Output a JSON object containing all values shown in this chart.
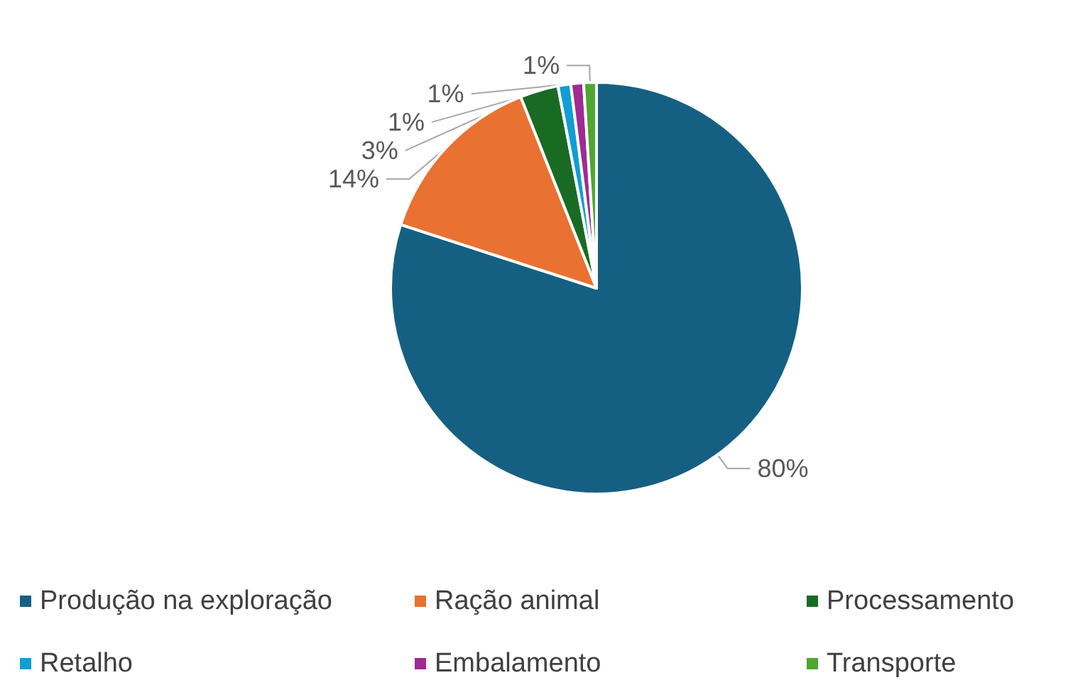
{
  "chart_data": {
    "type": "pie",
    "categories": [
      "Produção na exploração",
      "Ração animal",
      "Processamento",
      "Retalho",
      "Embalamento",
      "Transporte"
    ],
    "values": [
      80,
      14,
      3,
      1,
      1,
      1
    ],
    "colors": [
      "#156082",
      "#e97132",
      "#196b24",
      "#0f9ed5",
      "#a02b93",
      "#4ea72e"
    ],
    "value_labels": [
      "80%",
      "14%",
      "3%",
      "1%",
      "1%",
      "1%"
    ],
    "legend": "bottom"
  }
}
